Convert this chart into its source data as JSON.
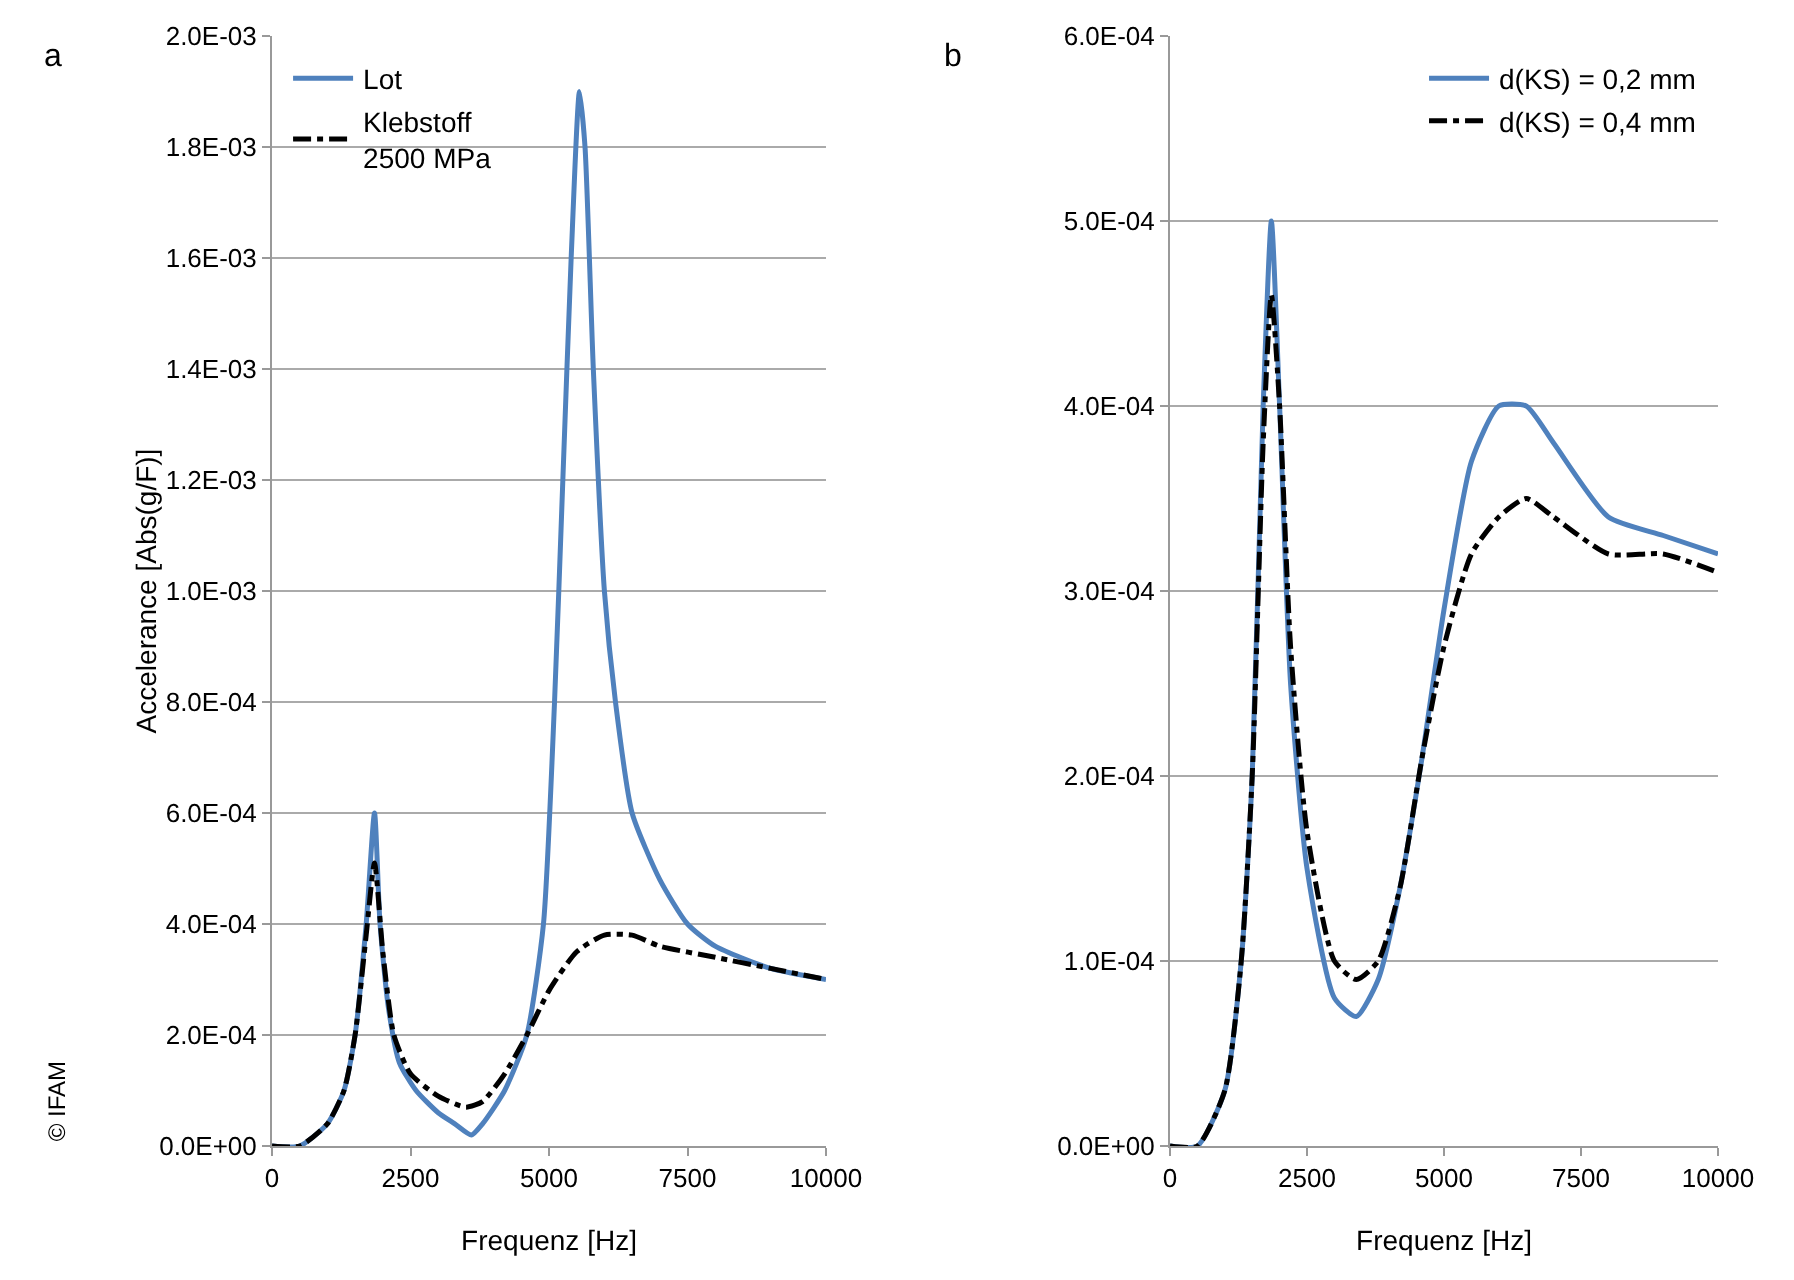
{
  "chart_data": [
    {
      "type": "line",
      "xlabel": "Frequenz [Hz]",
      "ylabel": "Accelerance [Abs(g/F)]",
      "annotations": [
        "a",
        "© IFAM"
      ],
      "xlim": [
        0,
        10000
      ],
      "xticks": [
        0,
        2500,
        5000,
        7500,
        10000
      ],
      "ylim": [
        0,
        0.002
      ],
      "yticks": [
        {
          "value": 0,
          "label": "0.0E+00"
        },
        {
          "value": 0.0002,
          "label": "2.0E-04"
        },
        {
          "value": 0.0004,
          "label": "4.0E-04"
        },
        {
          "value": 0.0006,
          "label": "6.0E-04"
        },
        {
          "value": 0.0008,
          "label": "8.0E-04"
        },
        {
          "value": 0.001,
          "label": "1.0E-03"
        },
        {
          "value": 0.0012,
          "label": "1.2E-03"
        },
        {
          "value": 0.0014,
          "label": "1.4E-03"
        },
        {
          "value": 0.0016,
          "label": "1.6E-03"
        },
        {
          "value": 0.0018,
          "label": "1.8E-03"
        },
        {
          "value": 0.002,
          "label": "2.0E-03"
        }
      ],
      "grid": "y",
      "legend": "top left",
      "series": [
        {
          "name": "Lot",
          "color": "#4f81bd",
          "line_style": "solid",
          "x": [
            0,
            500,
            1000,
            1300,
            1500,
            1700,
            1850,
            1950,
            2100,
            2300,
            2600,
            3000,
            3300,
            3600,
            3800,
            4200,
            4600,
            4900,
            5100,
            5250,
            5400,
            5550,
            5650,
            5800,
            6000,
            6200,
            6500,
            7000,
            7500,
            8000,
            9000,
            10000
          ],
          "values": [
            0,
            0,
            4e-05,
            0.0001,
            0.0002,
            0.0004,
            0.0006,
            0.0004,
            0.00025,
            0.00015,
            0.0001,
            6e-05,
            4e-05,
            2e-05,
            4e-05,
            0.0001,
            0.0002,
            0.0004,
            0.0008,
            0.0012,
            0.0016,
            0.0019,
            0.0018,
            0.0014,
            0.001,
            0.0008,
            0.0006,
            0.00048,
            0.0004,
            0.00036,
            0.00032,
            0.0003
          ]
        },
        {
          "name": "Klebstoff 2500 MPa",
          "color": "#000000",
          "line_style": "dashdot",
          "x": [
            0,
            500,
            1000,
            1300,
            1500,
            1700,
            1850,
            2000,
            2200,
            2500,
            3000,
            3500,
            3800,
            4200,
            4600,
            5000,
            5500,
            6000,
            6500,
            7000,
            8000,
            9000,
            10000
          ],
          "values": [
            0,
            0,
            4e-05,
            0.0001,
            0.0002,
            0.00038,
            0.00051,
            0.00035,
            0.0002,
            0.00013,
            9e-05,
            7e-05,
            8e-05,
            0.00013,
            0.0002,
            0.00028,
            0.00035,
            0.00038,
            0.00038,
            0.00036,
            0.00034,
            0.00032,
            0.0003
          ]
        }
      ]
    },
    {
      "type": "line",
      "xlabel": "Frequenz [Hz]",
      "annotations": [
        "b"
      ],
      "xlim": [
        0,
        10000
      ],
      "xticks": [
        0,
        2500,
        5000,
        7500,
        10000
      ],
      "ylim": [
        0,
        0.0006
      ],
      "yticks": [
        {
          "value": 0,
          "label": "0.0E+00"
        },
        {
          "value": 0.0001,
          "label": "1.0E-04"
        },
        {
          "value": 0.0002,
          "label": "2.0E-04"
        },
        {
          "value": 0.0003,
          "label": "3.0E-04"
        },
        {
          "value": 0.0004,
          "label": "4.0E-04"
        },
        {
          "value": 0.0005,
          "label": "5.0E-04"
        },
        {
          "value": 0.0006,
          "label": "6.0E-04"
        }
      ],
      "grid": "y",
      "legend": "top right",
      "series": [
        {
          "name": "d(KS) = 0,2 mm",
          "color": "#4f81bd",
          "line_style": "solid",
          "x": [
            0,
            500,
            1000,
            1300,
            1500,
            1700,
            1850,
            2000,
            2200,
            2500,
            3000,
            3400,
            3800,
            4200,
            4600,
            5000,
            5500,
            6000,
            6500,
            7000,
            8000,
            9000,
            10000
          ],
          "values": [
            0,
            0,
            3e-05,
            0.0001,
            0.0002,
            0.0004,
            0.0005,
            0.0004,
            0.00025,
            0.00015,
            8e-05,
            7e-05,
            9e-05,
            0.00014,
            0.00021,
            0.00029,
            0.00037,
            0.0004,
            0.0004,
            0.00038,
            0.00034,
            0.00033,
            0.00032
          ]
        },
        {
          "name": "d(KS) = 0,4 mm",
          "color": "#000000",
          "line_style": "dashdot",
          "x": [
            0,
            500,
            1000,
            1300,
            1500,
            1700,
            1850,
            2000,
            2200,
            2500,
            3000,
            3400,
            3800,
            4200,
            4600,
            5000,
            5500,
            6000,
            6500,
            7000,
            8000,
            9000,
            10000
          ],
          "values": [
            0,
            0,
            3e-05,
            0.0001,
            0.0002,
            0.00038,
            0.00046,
            0.0004,
            0.00027,
            0.00017,
            0.0001,
            9e-05,
            0.0001,
            0.00014,
            0.00021,
            0.00027,
            0.00032,
            0.00034,
            0.00035,
            0.00034,
            0.00032,
            0.00032,
            0.00031
          ]
        }
      ]
    }
  ]
}
